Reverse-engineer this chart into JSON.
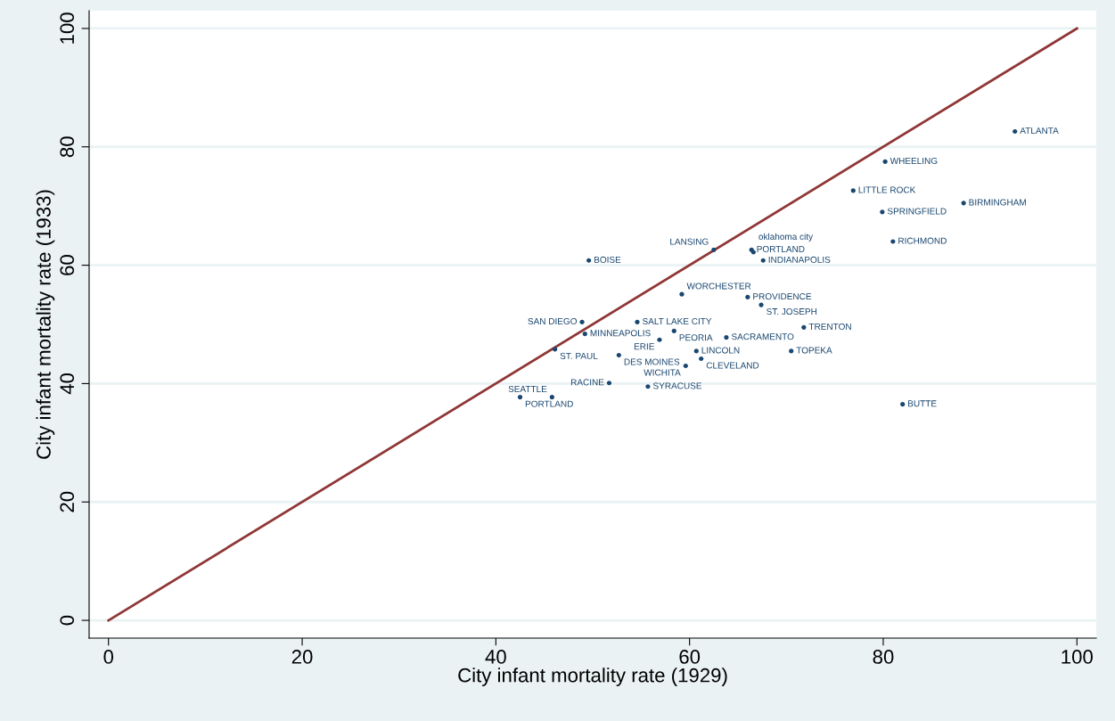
{
  "chart_data": {
    "type": "scatter",
    "xlabel": "City infant mortality rate (1929)",
    "ylabel": "City infant mortality rate (1933)",
    "xlim": [
      -2,
      102
    ],
    "ylim": [
      -3,
      103
    ],
    "xticks": [
      0,
      20,
      40,
      60,
      80,
      100
    ],
    "yticks": [
      0,
      20,
      40,
      60,
      80,
      100
    ],
    "grid": "y",
    "legend": false,
    "series": [
      {
        "type": "scatter",
        "color": "#1a476f",
        "marker": "circle",
        "x": [
          93.6,
          80.2,
          76.9,
          88.3,
          79.9,
          81.0,
          62.5,
          66.4,
          66.6,
          67.6,
          49.6,
          59.2,
          66.0,
          67.4,
          48.9,
          54.6,
          71.8,
          49.2,
          58.4,
          56.9,
          63.8,
          46.1,
          60.7,
          70.5,
          52.7,
          61.2,
          59.6,
          51.7,
          55.7,
          42.5,
          45.8,
          82.0
        ],
        "values": [
          82.6,
          77.5,
          72.6,
          70.5,
          69.0,
          64.0,
          62.6,
          62.6,
          62.2,
          60.8,
          60.8,
          55.1,
          54.6,
          53.3,
          50.4,
          50.4,
          49.5,
          48.4,
          48.9,
          47.4,
          47.8,
          45.8,
          45.5,
          45.5,
          44.8,
          44.2,
          43.0,
          40.1,
          39.5,
          37.7,
          37.7,
          36.5
        ],
        "value_labels": [
          "ATLANTA",
          "WHEELING",
          "LITTLE ROCK",
          "BIRMINGHAM",
          "SPRINGFIELD",
          "RICHMOND",
          "LANSING",
          "PORTLAND",
          "oklahoma city",
          "INDIANAPOLIS",
          "BOISE",
          "WORCHESTER",
          "PROVIDENCE",
          "ST. JOSEPH",
          "SAN DIEGO",
          "SALT LAKE CITY",
          "TRENTON",
          "MINNEAPOLIS",
          "PEORIA",
          "ERIE",
          "SACRAMENTO",
          "ST. PAUL",
          "LINCOLN",
          "TOPEKA",
          "DES MOINES",
          "CLEVELAND",
          "WICHITA",
          "RACINE",
          "SYRACUSE",
          "PORTLAND",
          "SEATTLE",
          "BUTTE"
        ]
      },
      {
        "type": "line",
        "color": "#903636",
        "x": [
          0,
          100
        ],
        "values": [
          0,
          100
        ]
      }
    ]
  }
}
